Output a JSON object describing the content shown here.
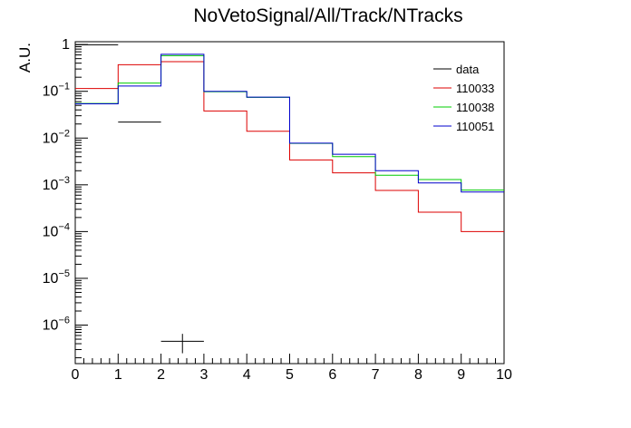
{
  "chart_data": {
    "type": "line",
    "title": "NoVetoSignal/All/Track/NTracks",
    "ylabel": "A.U.",
    "xlabel": "",
    "y_scale": "log",
    "xlim": [
      0,
      10
    ],
    "ylim": [
      1.5e-07,
      1.15
    ],
    "x_ticks": [
      "0",
      "1",
      "2",
      "3",
      "4",
      "5",
      "6",
      "7",
      "8",
      "9",
      "10"
    ],
    "y_ticks": [
      {
        "base": "10",
        "exp": "−6",
        "value": 1e-06
      },
      {
        "base": "10",
        "exp": "−5",
        "value": 1e-05
      },
      {
        "base": "10",
        "exp": "−4",
        "value": 0.0001
      },
      {
        "base": "10",
        "exp": "−3",
        "value": 0.001
      },
      {
        "base": "10",
        "exp": "−2",
        "value": 0.01
      },
      {
        "base": "10",
        "exp": "−1",
        "value": 0.1
      },
      {
        "base": "1",
        "exp": "",
        "value": 1
      }
    ],
    "bin_edges": [
      0,
      1,
      2,
      3,
      4,
      5,
      6,
      7,
      8,
      9,
      10
    ],
    "legend_position": "top-right",
    "grid": false,
    "series": [
      {
        "name": "data",
        "color": "#000000",
        "style": "points",
        "points": [
          {
            "x": 0.5,
            "y": 0.99
          },
          {
            "x": 1.5,
            "y": 0.022
          },
          {
            "x": 2.5,
            "y": 4.5e-07,
            "yerr": 2e-07
          }
        ]
      },
      {
        "name": "110033",
        "color": "#dd0000",
        "style": "step",
        "values": [
          0.115,
          0.37,
          0.43,
          0.038,
          0.014,
          0.0034,
          0.0018,
          0.00076,
          0.00026,
          0.0001
        ]
      },
      {
        "name": "110038",
        "color": "#00cc00",
        "style": "step",
        "values": [
          0.055,
          0.15,
          0.58,
          0.098,
          0.074,
          0.0077,
          0.004,
          0.0016,
          0.0013,
          0.00077
        ]
      },
      {
        "name": "110051",
        "color": "#0000cc",
        "style": "step",
        "values": [
          0.054,
          0.13,
          0.62,
          0.1,
          0.075,
          0.0078,
          0.0045,
          0.002,
          0.0011,
          0.0007
        ]
      }
    ]
  }
}
